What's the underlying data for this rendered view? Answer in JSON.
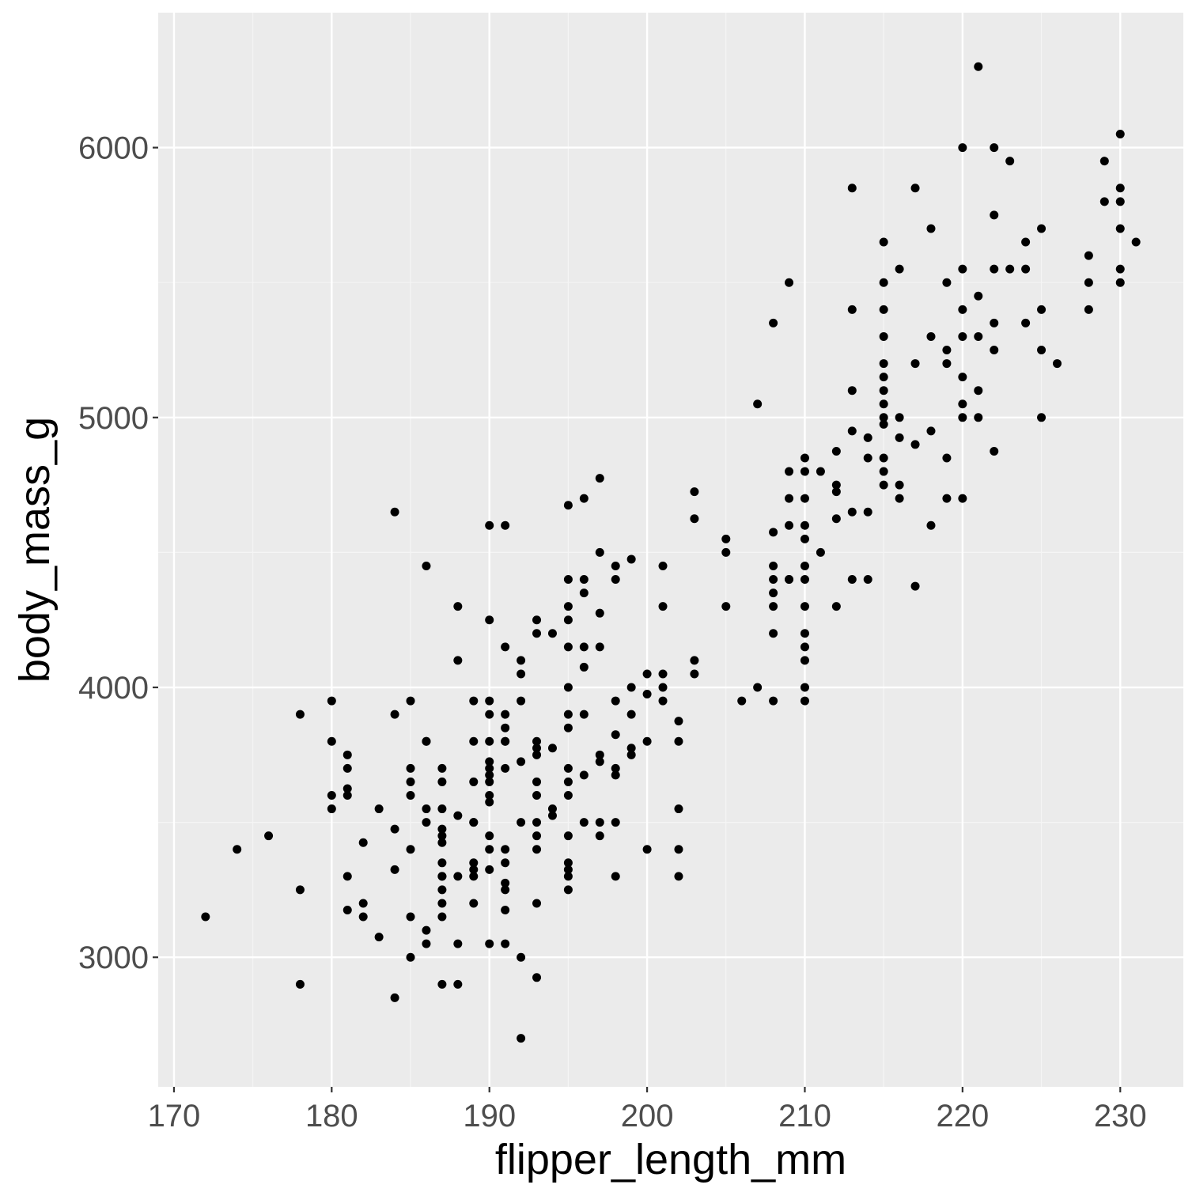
{
  "chart_data": {
    "type": "scatter",
    "xlabel": "flipper_length_mm",
    "ylabel": "body_mass_g",
    "xlim": [
      169,
      234
    ],
    "ylim": [
      2520,
      6500
    ],
    "x_ticks": [
      170,
      180,
      190,
      200,
      210,
      220,
      230
    ],
    "y_ticks": [
      3000,
      4000,
      5000,
      6000
    ],
    "x_tick_labels": [
      "170",
      "180",
      "190",
      "200",
      "210",
      "220",
      "230"
    ],
    "y_tick_labels": [
      "3000",
      "4000",
      "5000",
      "6000"
    ],
    "grid": true,
    "legend": "none",
    "colors": {
      "panel_background": "#ebebeb",
      "grid_major": "#ffffff",
      "grid_minor": "#f5f5f5",
      "point": "#000000",
      "tick_label": "#4d4d4d",
      "axis_title": "#000000"
    },
    "series": [
      {
        "x": [
          172,
          174,
          176,
          178,
          178,
          178,
          180,
          180,
          180,
          180,
          181,
          181,
          181,
          181,
          181,
          181,
          182,
          182,
          182,
          183,
          183,
          184,
          184,
          184,
          184,
          184,
          185,
          185,
          185,
          185,
          185,
          185,
          185,
          186,
          186,
          186,
          186,
          186,
          186,
          186,
          187,
          187,
          187,
          187,
          187,
          187,
          187,
          187,
          187,
          187,
          187,
          187,
          187,
          188,
          188,
          188,
          188,
          188,
          188,
          189,
          189,
          189,
          189,
          189,
          189,
          189,
          189,
          189,
          190,
          190,
          190,
          190,
          190,
          190,
          190,
          190,
          190,
          190,
          190,
          190,
          190,
          190,
          190,
          191,
          191,
          191,
          191,
          191,
          191,
          191,
          191,
          191,
          191,
          191,
          191,
          191,
          192,
          192,
          192,
          192,
          192,
          192,
          192,
          193,
          193,
          193,
          193,
          193,
          193,
          193,
          193,
          193,
          193,
          193,
          193,
          194,
          194,
          194,
          194,
          195,
          195,
          195,
          195,
          195,
          195,
          195,
          195,
          195,
          195,
          195,
          195,
          195,
          195,
          195,
          195,
          196,
          196,
          196,
          196,
          196,
          196,
          196,
          196,
          197,
          197,
          197,
          197,
          197,
          197,
          197,
          197,
          198,
          198,
          198,
          198,
          198,
          198,
          198,
          198,
          199,
          199,
          199,
          199,
          199,
          200,
          200,
          200,
          200,
          201,
          201,
          201,
          201,
          201,
          202,
          202,
          202,
          202,
          202,
          203,
          203,
          203,
          203,
          205,
          205,
          205,
          206,
          207,
          207,
          208,
          208,
          208,
          208,
          208,
          208,
          208,
          208,
          209,
          209,
          209,
          209,
          209,
          209,
          210,
          210,
          210,
          210,
          210,
          210,
          210,
          210,
          210,
          210,
          210,
          210,
          210,
          211,
          211,
          212,
          212,
          212,
          212,
          212,
          213,
          213,
          213,
          213,
          213,
          213,
          214,
          214,
          214,
          214,
          215,
          215,
          215,
          215,
          215,
          215,
          215,
          215,
          215,
          215,
          215,
          215,
          215,
          216,
          216,
          216,
          216,
          216,
          217,
          217,
          217,
          217,
          218,
          218,
          218,
          218,
          219,
          219,
          219,
          219,
          219,
          220,
          220,
          220,
          220,
          220,
          220,
          220,
          220,
          221,
          221,
          221,
          221,
          221,
          222,
          222,
          222,
          222,
          222,
          222,
          223,
          223,
          224,
          224,
          224,
          225,
          225,
          225,
          225,
          226,
          228,
          228,
          228,
          229,
          229,
          230,
          230,
          230,
          230,
          230,
          230,
          231
        ],
        "y": [
          3150,
          3400,
          3450,
          3900,
          3250,
          2900,
          3950,
          3800,
          3600,
          3550,
          3750,
          3700,
          3625,
          3600,
          3300,
          3175,
          3425,
          3200,
          3150,
          3550,
          3075,
          4650,
          3900,
          3475,
          3325,
          2850,
          3950,
          3700,
          3650,
          3600,
          3400,
          3150,
          3000,
          4450,
          3800,
          3550,
          3500,
          3100,
          3050,
          3800,
          3700,
          3650,
          3475,
          3425,
          3350,
          3300,
          3250,
          3200,
          3150,
          3550,
          2900,
          3450,
          3300,
          4300,
          4100,
          3525,
          3300,
          3050,
          2900,
          3950,
          3800,
          3650,
          3500,
          3350,
          3325,
          3200,
          3300,
          3500,
          4600,
          4250,
          3950,
          3900,
          3800,
          3725,
          3700,
          3650,
          3600,
          3575,
          3450,
          3400,
          3325,
          3050,
          3675,
          4600,
          4150,
          3900,
          3800,
          3700,
          3400,
          3350,
          3275,
          3250,
          3175,
          3050,
          3850,
          3800,
          4100,
          4050,
          3950,
          3725,
          3500,
          3000,
          2700,
          4250,
          4200,
          3800,
          3775,
          3750,
          3650,
          3600,
          3500,
          3450,
          3400,
          3200,
          2925,
          4200,
          3775,
          3550,
          3525,
          4675,
          4400,
          4300,
          4250,
          4150,
          4000,
          3900,
          3850,
          3650,
          3600,
          3450,
          3350,
          3325,
          3300,
          3250,
          3700,
          4700,
          4400,
          4350,
          4150,
          4075,
          3900,
          3675,
          3500,
          4775,
          4500,
          4275,
          4150,
          3750,
          3725,
          3500,
          3450,
          4450,
          4400,
          3950,
          3825,
          3700,
          3675,
          3500,
          3300,
          4475,
          4000,
          3900,
          3775,
          3750,
          4050,
          3975,
          3800,
          3400,
          4450,
          4300,
          4050,
          4000,
          3950,
          3875,
          3800,
          3550,
          3400,
          3300,
          4725,
          4625,
          4100,
          4050,
          4550,
          4500,
          4300,
          3950,
          5050,
          4000,
          5350,
          4575,
          4450,
          4350,
          4300,
          4200,
          3950,
          4400,
          5500,
          4800,
          4700,
          4600,
          4400,
          4400,
          4850,
          4800,
          4700,
          4600,
          4550,
          4450,
          4400,
          4300,
          4200,
          4150,
          4100,
          4000,
          3950,
          4800,
          4500,
          4875,
          4750,
          4725,
          4625,
          4300,
          5850,
          5400,
          5100,
          4950,
          4650,
          4400,
          4925,
          4850,
          4650,
          4400,
          5650,
          5500,
          5400,
          5300,
          5150,
          5100,
          5050,
          5000,
          4975,
          4850,
          4750,
          5200,
          4800,
          5550,
          5000,
          4925,
          4750,
          4700,
          5850,
          5200,
          4900,
          4375,
          5700,
          5300,
          4950,
          4600,
          5500,
          5250,
          5200,
          4850,
          4700,
          6000,
          5550,
          5400,
          5300,
          5150,
          5050,
          5000,
          4700,
          6300,
          5450,
          5300,
          5100,
          5000,
          6000,
          5750,
          5550,
          5350,
          5250,
          4875,
          5950,
          5550,
          5650,
          5550,
          5350,
          5700,
          5400,
          5250,
          5000,
          5200,
          5600,
          5500,
          5400,
          5950,
          5800,
          6050,
          5850,
          5800,
          5700,
          5550,
          5500,
          5650
        ]
      }
    ]
  }
}
